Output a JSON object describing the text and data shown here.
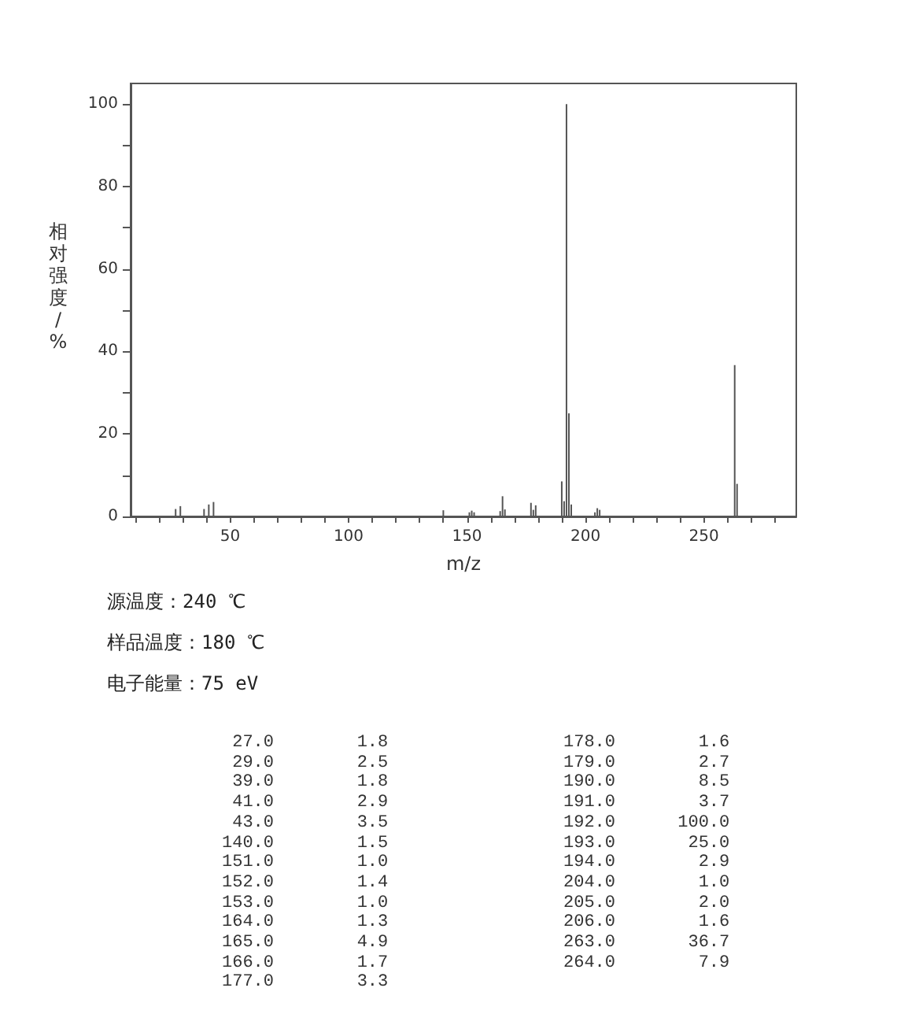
{
  "chart_data": {
    "type": "bar",
    "xlabel": "m/z",
    "ylabel": "相对强度/%",
    "x": [
      27,
      29,
      39,
      41,
      43,
      140,
      151,
      152,
      153,
      164,
      165,
      166,
      177,
      178,
      179,
      190,
      191,
      192,
      193,
      194,
      204,
      205,
      206,
      263,
      264
    ],
    "values": [
      1.8,
      2.5,
      1.8,
      2.9,
      3.5,
      1.5,
      1.0,
      1.4,
      1.0,
      1.3,
      4.9,
      1.7,
      3.3,
      1.6,
      2.7,
      8.5,
      3.7,
      100.0,
      25.0,
      2.9,
      1.0,
      2.0,
      1.6,
      36.7,
      7.9
    ],
    "color": "#555555",
    "xlim": [
      8,
      289
    ],
    "ylim": [
      0,
      105
    ],
    "xticks": [
      {
        "value": 10,
        "label": null
      },
      {
        "value": 20,
        "label": null
      },
      {
        "value": 30,
        "label": null
      },
      {
        "value": 40,
        "label": null
      },
      50,
      {
        "value": 60,
        "label": null
      },
      {
        "value": 70,
        "label": null
      },
      {
        "value": 80,
        "label": null
      },
      {
        "value": 90,
        "label": null
      },
      100,
      {
        "value": 110,
        "label": null
      },
      {
        "value": 120,
        "label": null
      },
      {
        "value": 130,
        "label": null
      },
      {
        "value": 140,
        "label": null
      },
      150,
      {
        "value": 160,
        "label": null
      },
      {
        "value": 170,
        "label": null
      },
      {
        "value": 180,
        "label": null
      },
      {
        "value": 190,
        "label": null
      },
      200,
      {
        "value": 210,
        "label": null
      },
      {
        "value": 220,
        "label": null
      },
      {
        "value": 230,
        "label": null
      },
      {
        "value": 240,
        "label": null
      },
      250,
      {
        "value": 260,
        "label": null
      },
      {
        "value": 270,
        "label": null
      },
      {
        "value": 280,
        "label": null
      }
    ],
    "yticks": [
      0,
      {
        "value": 10,
        "label": null
      },
      20,
      {
        "value": 30,
        "label": null
      },
      40,
      {
        "value": 50,
        "label": null
      },
      60,
      {
        "value": 70,
        "label": null
      },
      80,
      {
        "value": 90,
        "label": null
      },
      100
    ],
    "grid": false,
    "annotations": [
      "源温度：240 ℃",
      "样品温度：180 ℃",
      "电子能量：75 eV",
      " 27.0        1.8",
      " 29.0        2.5",
      " 39.0        1.8",
      " 41.0        2.9",
      " 43.0        3.5",
      "140.0        1.5",
      "151.0        1.0",
      "152.0        1.4",
      "153.0        1.0",
      "164.0        1.3",
      "165.0        4.9",
      "166.0        1.7",
      "177.0        3.3",
      "178.0        1.6",
      "179.0        2.7",
      "190.0        8.5",
      "191.0        3.7",
      "192.0      100.0",
      "193.0       25.0",
      "194.0        2.9",
      "204.0        1.0",
      "205.0        2.0",
      "206.0        1.6",
      "263.0       36.7",
      "264.0        7.9"
    ]
  }
}
